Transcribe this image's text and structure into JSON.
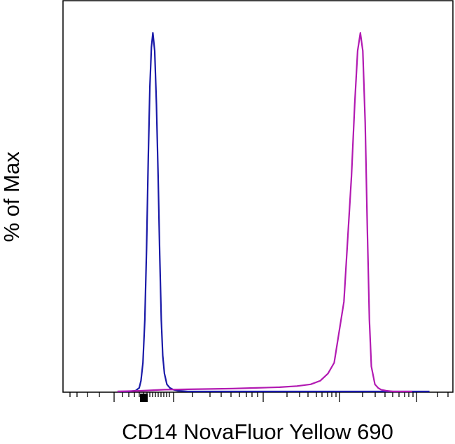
{
  "chart_data": {
    "type": "line",
    "title": "",
    "xlabel": "CD14 NovaFluor Yellow 690",
    "ylabel": "% of Max",
    "xscale": "log",
    "grid": false,
    "legend": "none",
    "ylim": [
      0,
      100
    ],
    "series": [
      {
        "color": "#1a1aa8",
        "x": [
          50,
          70,
          85,
          95,
          100,
          106,
          112,
          118,
          124,
          130,
          136,
          142,
          150,
          158,
          166,
          174,
          182,
          190,
          200,
          215,
          235,
          260,
          300,
          400,
          600,
          1000,
          3000,
          10000,
          100000,
          500000
        ],
        "y": [
          0,
          0,
          0.2,
          1,
          3,
          8,
          20,
          40,
          65,
          85,
          96,
          100,
          95,
          80,
          60,
          38,
          20,
          10,
          5,
          2,
          1,
          0.5,
          0.2,
          0,
          0,
          0,
          0,
          0,
          0,
          0
        ]
      },
      {
        "color": "#b21ab2",
        "x": [
          50,
          100,
          200,
          400,
          800,
          1500,
          3000,
          6000,
          10000,
          15000,
          20000,
          25000,
          30000,
          40000,
          50000,
          55000,
          60000,
          65000,
          70000,
          75000,
          80000,
          85000,
          90000,
          100000,
          110000,
          120000,
          140000,
          170000,
          200000,
          300000
        ],
        "y": [
          0,
          0.2,
          0.5,
          0.6,
          0.7,
          0.8,
          1,
          1.2,
          1.5,
          2,
          3,
          5,
          8,
          25,
          60,
          80,
          95,
          100,
          95,
          75,
          45,
          20,
          7,
          2,
          1,
          0.5,
          0.2,
          0,
          0,
          0
        ]
      }
    ]
  }
}
